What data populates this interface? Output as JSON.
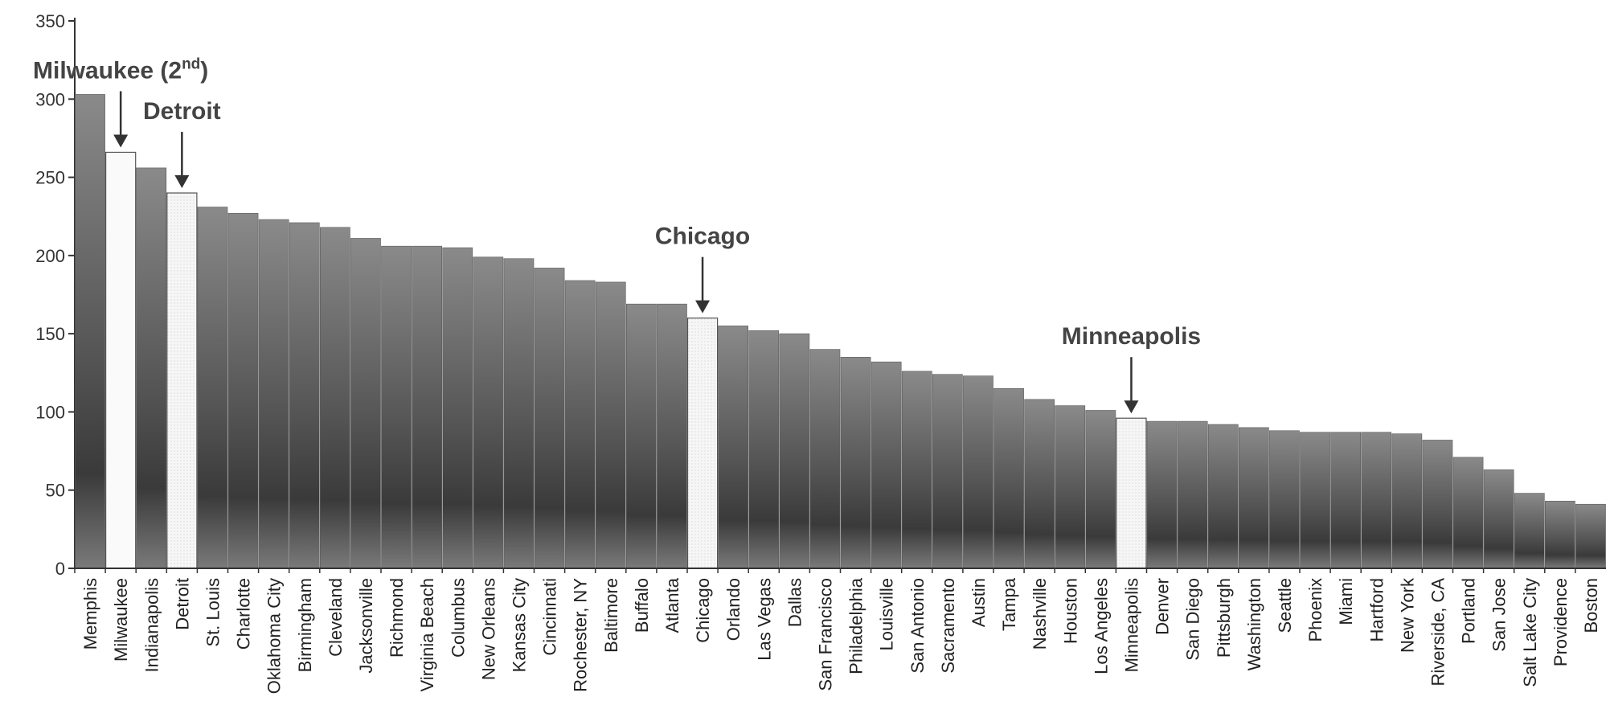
{
  "chart_data": {
    "type": "bar",
    "title": "",
    "xlabel": "",
    "ylabel": "",
    "ylim": [
      0,
      350
    ],
    "yticks": [
      0,
      50,
      100,
      150,
      200,
      250,
      300,
      350
    ],
    "grid": false,
    "legend": "none",
    "categories": [
      "Memphis",
      "Milwaukee",
      "Indianapolis",
      "Detroit",
      "St. Louis",
      "Charlotte",
      "Oklahoma City",
      "Birmingham",
      "Cleveland",
      "Jacksonville",
      "Richmond",
      "Virginia Beach",
      "Columbus",
      "New Orleans",
      "Kansas City",
      "Cincinnati",
      "Rochester, NY",
      "Baltimore",
      "Buffalo",
      "Atlanta",
      "Chicago",
      "Orlando",
      "Las Vegas",
      "Dallas",
      "San Francisco",
      "Philadelphia",
      "Louisville",
      "San Antonio",
      "Sacramento",
      "Austin",
      "Tampa",
      "Nashville",
      "Houston",
      "Los Angeles",
      "Minneapolis",
      "Denver",
      "San Diego",
      "Pittsburgh",
      "Washington",
      "Seattle",
      "Phoenix",
      "Miami",
      "Hartford",
      "New York",
      "Riverside, CA",
      "Portland",
      "San Jose",
      "Salt Lake City",
      "Providence",
      "Boston"
    ],
    "values": [
      303,
      266,
      256,
      240,
      231,
      227,
      223,
      221,
      218,
      211,
      206,
      206,
      205,
      199,
      198,
      192,
      184,
      183,
      169,
      169,
      160,
      155,
      152,
      150,
      140,
      135,
      132,
      126,
      124,
      123,
      115,
      108,
      104,
      101,
      96,
      94,
      94,
      92,
      90,
      88,
      87,
      87,
      87,
      86,
      82,
      71,
      63,
      48,
      43,
      41
    ],
    "highlighted": [
      "Milwaukee",
      "Detroit",
      "Chicago",
      "Minneapolis"
    ],
    "colors": {
      "bar": "#7b7b7b",
      "highlight": "#fafafa",
      "highlight_dotted": "#f0f0f0",
      "arrow": "#333333"
    },
    "annotations": [
      {
        "category": "Milwaukee",
        "label": "Milwaukee (2",
        "sup": "nd",
        "suffix": ")"
      },
      {
        "category": "Detroit",
        "label": "Detroit"
      },
      {
        "category": "Chicago",
        "label": "Chicago"
      },
      {
        "category": "Minneapolis",
        "label": "Minneapolis"
      }
    ]
  }
}
